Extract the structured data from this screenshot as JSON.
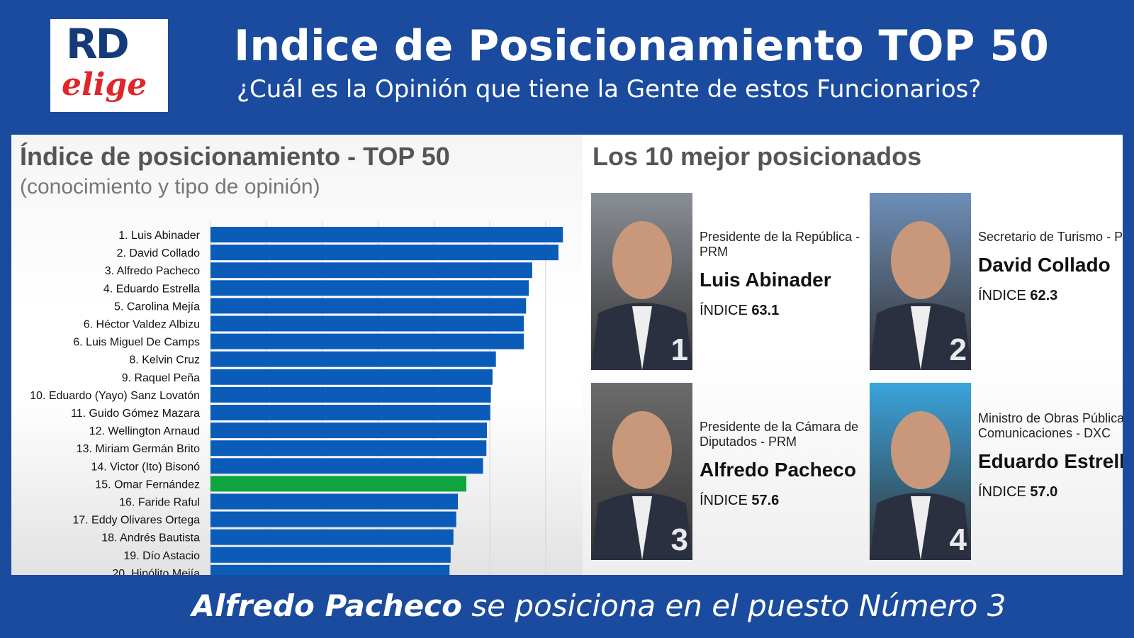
{
  "logo": {
    "text_top": "RD",
    "text_bottom": "elige",
    "colors": {
      "blue": "#143a7a",
      "red": "#e0262b"
    }
  },
  "header": {
    "title": "Indice de Posicionamiento TOP 50",
    "subtitle": "¿Cuál es la Opinión que tiene la Gente de estos Funcionarios?"
  },
  "chart_data": {
    "type": "bar",
    "orientation": "horizontal",
    "title": "Índice de posicionamiento - TOP 50",
    "subtitle": "(conocimiento y tipo de opinión)",
    "xlim": [
      0,
      70
    ],
    "grid": true,
    "categories": [
      "1. Luis Abinader",
      "2. David Collado",
      "3. Alfredo Pacheco",
      "4. Eduardo Estrella",
      "5. Carolina Mejía",
      "6. Héctor Valdez Albizu",
      "6. Luis Miguel De Camps",
      "8. Kelvin Cruz",
      "9. Raquel Peña",
      "10. Eduardo (Yayo) Sanz Lovatón",
      "11. Guido Gómez Mazara",
      "12. Wellington Arnaud",
      "13. Miriam Germán Brito",
      "14. Victor (Ito) Bisonó",
      "15. Omar Fernández",
      "16. Faride Raful",
      "17. Eddy Olivares Ortega",
      "18. Andrés Bautista",
      "19. Dío Astacio",
      "20. Hipólito Mejía"
    ],
    "values": [
      63.1,
      62.3,
      57.6,
      57.0,
      56.5,
      56.1,
      56.1,
      51.1,
      50.5,
      50.2,
      50.1,
      49.5,
      49.4,
      48.8,
      45.8,
      44.3,
      44.0,
      43.5,
      43.0,
      42.8
    ],
    "highlight_index": 14,
    "colors": {
      "bar": "#0a5cb8",
      "highlight": "#0ea43e"
    }
  },
  "top": {
    "title": "Los 10 mejor posicionados",
    "index_label": "ÍNDICE",
    "cards": [
      {
        "rank": "1",
        "role": "Presidente de la República - PRM",
        "name": "Luis Abinader",
        "index": "63.1",
        "bg": "#8a8f96"
      },
      {
        "rank": "2",
        "role": "Secretario de Turismo - PRM",
        "name": "David Collado",
        "index": "62.3",
        "bg": "#6d8fb8"
      },
      {
        "rank": "3",
        "role": "Presidente de la Cámara de Diputados -  PRM",
        "name": "Alfredo Pacheco",
        "index": "57.6",
        "bg": "#6b6b6b"
      },
      {
        "rank": "4",
        "role": "Ministro de Obras Públicas y Comunicaciones - DXC",
        "name": "Eduardo Estrella",
        "index": "57.0",
        "bg": "#3aa4dd"
      }
    ]
  },
  "footer": {
    "name": "Alfredo Pacheco",
    "text": " se posiciona en el puesto Número 3"
  }
}
